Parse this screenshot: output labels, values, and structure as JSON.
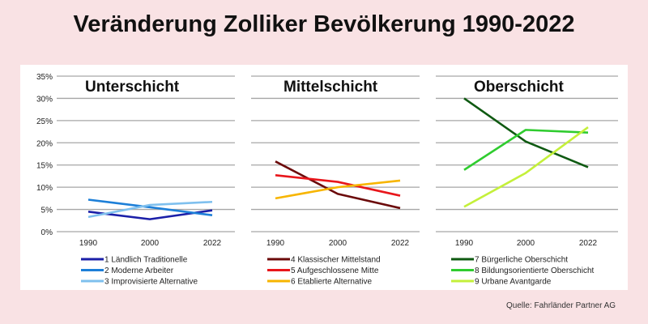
{
  "title": "Veränderung Zolliker Bevölkerung 1990-2022",
  "source": "Quelle: Fahrländer Partner AG",
  "chart_data": [
    {
      "type": "line",
      "title": "Unterschicht",
      "x": [
        "1990",
        "2000",
        "2022"
      ],
      "ylim": [
        0,
        35
      ],
      "yticks": [
        "0%",
        "5%",
        "10%",
        "15%",
        "20%",
        "25%",
        "30%",
        "35%"
      ],
      "grid": true,
      "legend": "bottom",
      "series": [
        {
          "name": "1 Ländlich Traditionelle",
          "color": "#1b1fa8",
          "values": [
            4.5,
            2.8,
            4.8
          ]
        },
        {
          "name": "2 Moderne Arbeiter",
          "color": "#1d7fd8",
          "values": [
            7.2,
            5.5,
            3.7
          ]
        },
        {
          "name": "3 Improvisierte Alternative",
          "color": "#7fc0ee",
          "values": [
            3.3,
            6.0,
            6.7
          ]
        }
      ]
    },
    {
      "type": "line",
      "title": "Mittelschicht",
      "x": [
        "1990",
        "2000",
        "2022"
      ],
      "ylim": [
        0,
        35
      ],
      "grid": true,
      "legend": "bottom",
      "series": [
        {
          "name": "4 Klassischer Mittelstand",
          "color": "#6b0a0a",
          "values": [
            15.8,
            8.5,
            5.3
          ]
        },
        {
          "name": "5 Aufgeschlossene Mitte",
          "color": "#e8161b",
          "values": [
            12.7,
            11.2,
            8.1
          ]
        },
        {
          "name": "6 Etablierte Alternative",
          "color": "#f7b500",
          "values": [
            7.5,
            10.0,
            11.5
          ]
        }
      ]
    },
    {
      "type": "line",
      "title": "Oberschicht",
      "x": [
        "1990",
        "2000",
        "2022"
      ],
      "ylim": [
        0,
        35
      ],
      "grid": true,
      "legend": "bottom",
      "series": [
        {
          "name": "7 Bürgerliche Oberschicht",
          "color": "#0f5a12",
          "values": [
            30.0,
            20.3,
            14.5
          ]
        },
        {
          "name": "8 Bildungsorientierte Oberschicht",
          "color": "#2fcc2f",
          "values": [
            13.9,
            22.9,
            22.3
          ]
        },
        {
          "name": "9 Urbane Avantgarde",
          "color": "#c4f03a",
          "values": [
            5.6,
            13.2,
            23.5
          ]
        }
      ]
    }
  ]
}
